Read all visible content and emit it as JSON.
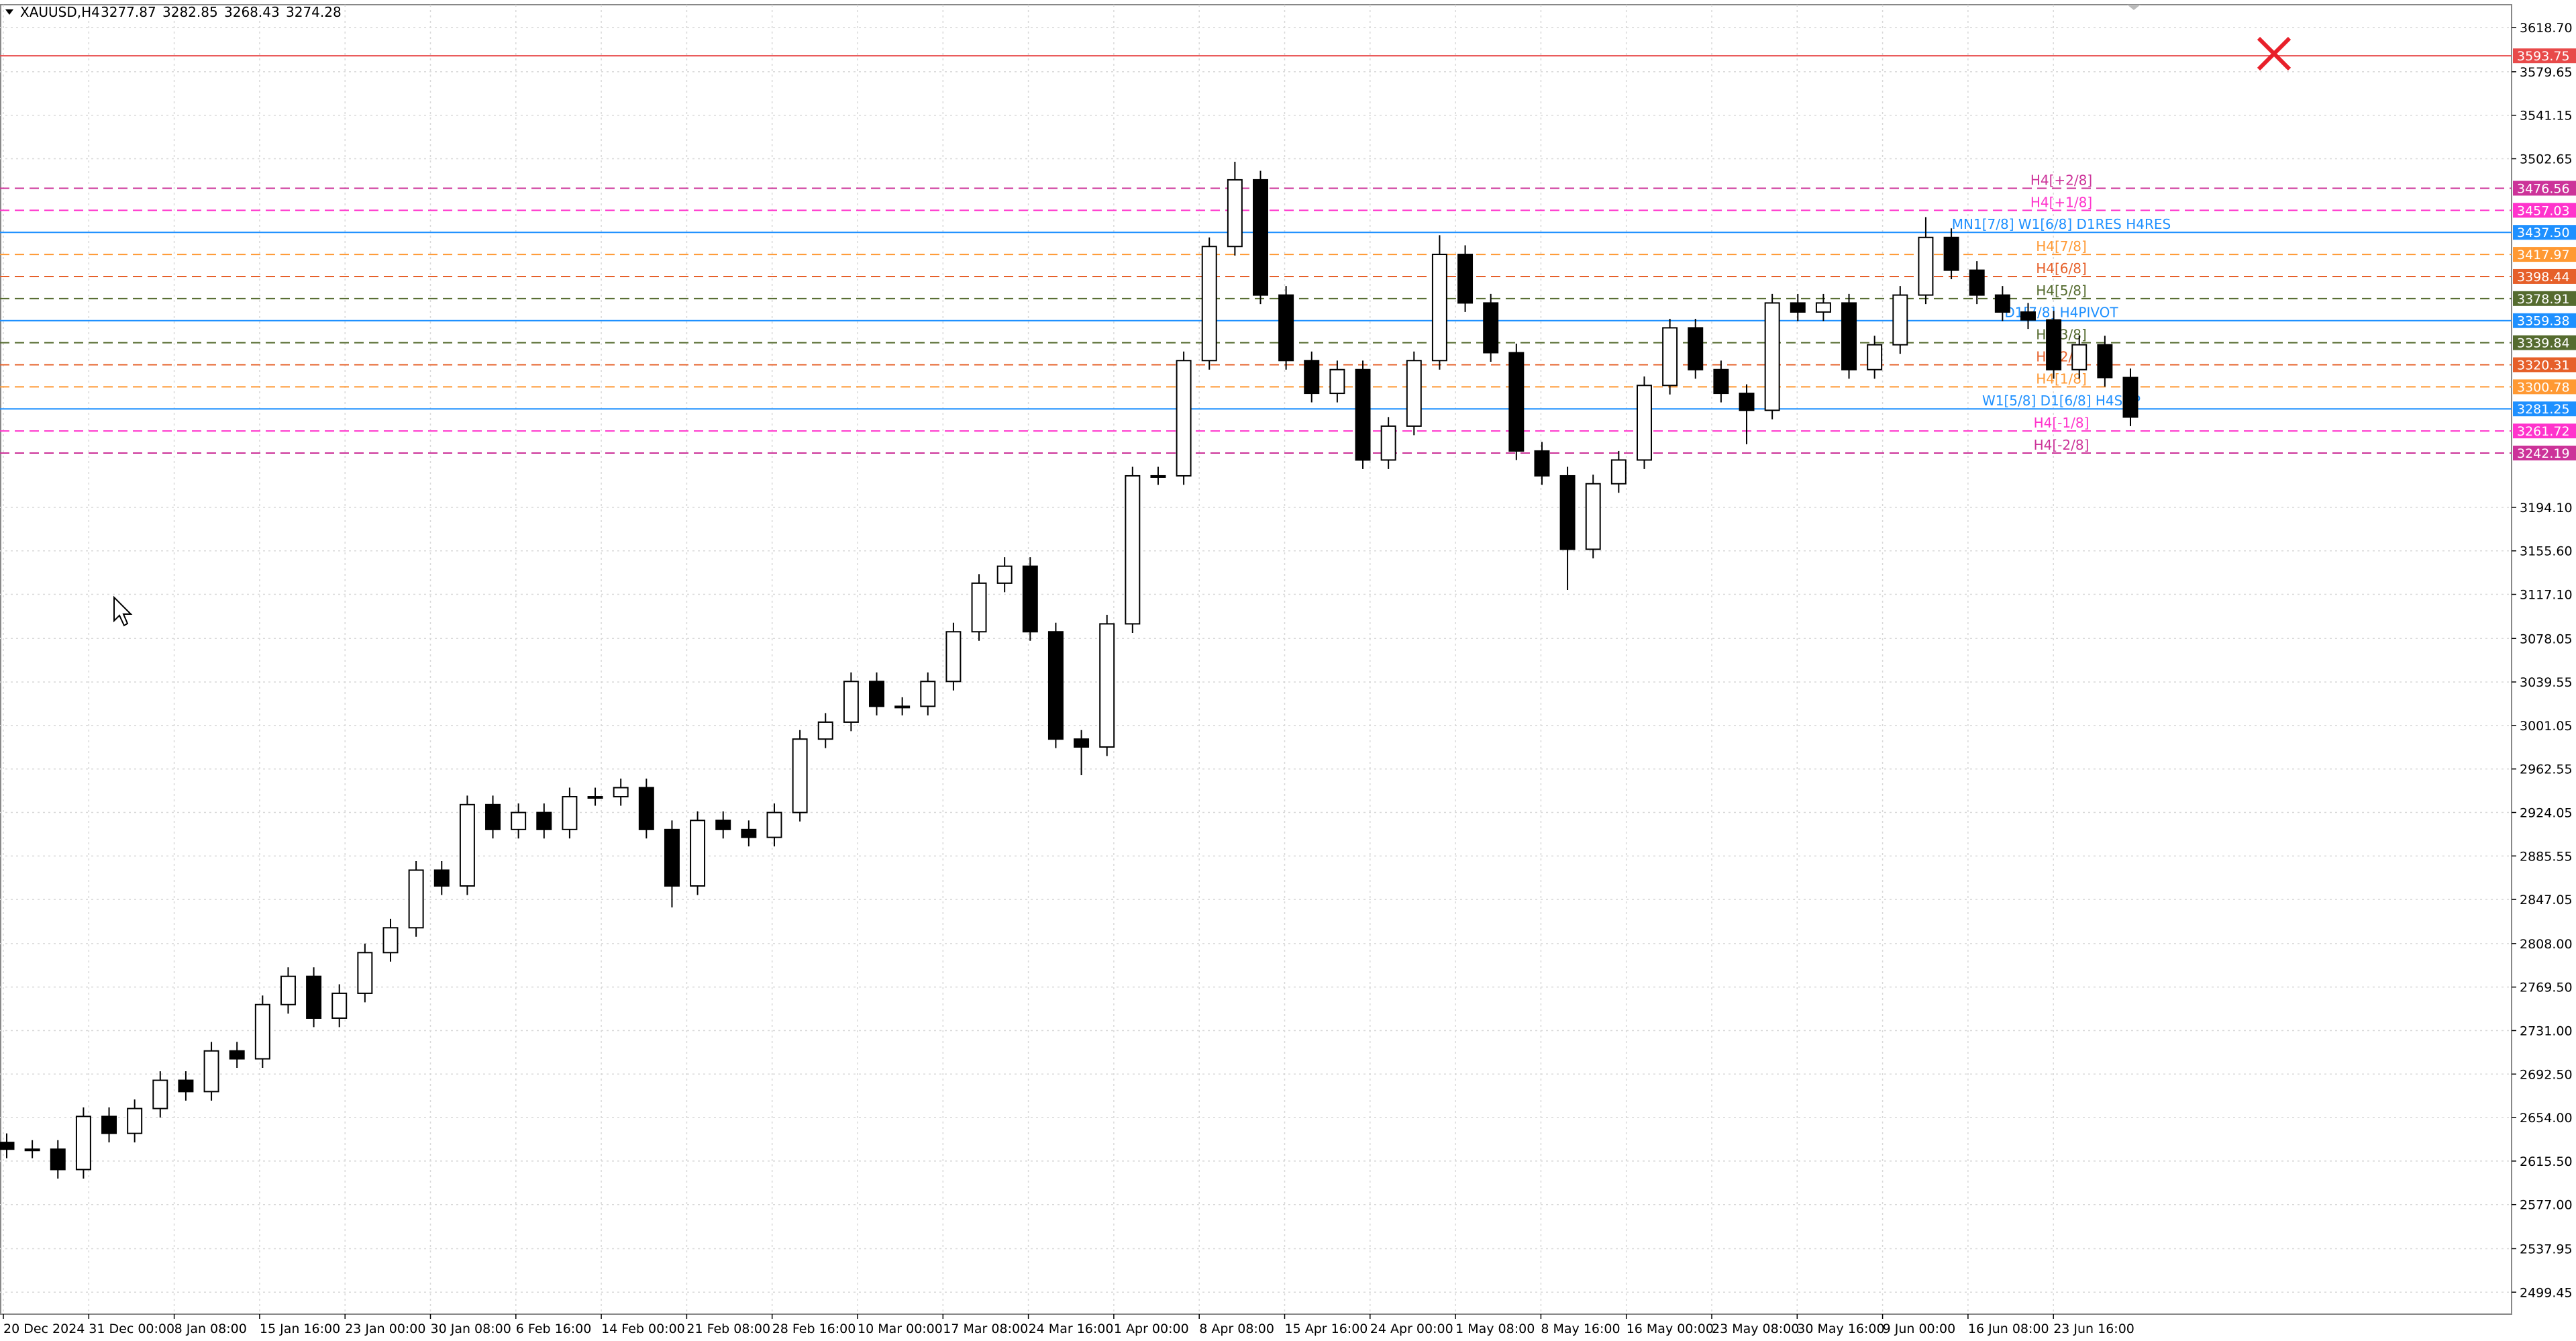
{
  "chart_data": {
    "type": "candlestick",
    "symbol": "XAUUSD,H4",
    "header_values": [
      3277.87,
      3282.85,
      3268.43,
      3274.28
    ],
    "ylim": [
      2480,
      3639
    ],
    "yticks": [
      {
        "value": 3618.7,
        "label": "3618.70"
      },
      {
        "value": 3579.65,
        "label": "3579.65"
      },
      {
        "value": 3541.15,
        "label": "3541.15"
      },
      {
        "value": 3502.65,
        "label": "3502.65"
      },
      {
        "value": 3194.1,
        "label": "3194.10"
      },
      {
        "value": 3155.6,
        "label": "3155.60"
      },
      {
        "value": 3117.1,
        "label": "3117.10"
      },
      {
        "value": 3078.05,
        "label": "3078.05"
      },
      {
        "value": 3039.55,
        "label": "3039.55"
      },
      {
        "value": 3001.05,
        "label": "3001.05"
      },
      {
        "value": 2962.55,
        "label": "2962.55"
      },
      {
        "value": 2924.05,
        "label": "2924.05"
      },
      {
        "value": 2885.55,
        "label": "2885.55"
      },
      {
        "value": 2847.05,
        "label": "2847.05"
      },
      {
        "value": 2808.0,
        "label": "2808.00"
      },
      {
        "value": 2769.5,
        "label": "2769.50"
      },
      {
        "value": 2731.0,
        "label": "2731.00"
      },
      {
        "value": 2692.5,
        "label": "2692.50"
      },
      {
        "value": 2654.0,
        "label": "2654.00"
      },
      {
        "value": 2615.5,
        "label": "2615.50"
      },
      {
        "value": 2577.0,
        "label": "2577.00"
      },
      {
        "value": 2537.95,
        "label": "2537.95"
      },
      {
        "value": 2499.45,
        "label": "2499.45"
      }
    ],
    "x_labels": [
      "20 Dec 2024",
      "31 Dec 00:00",
      "8 Jan 08:00",
      "15 Jan 16:00",
      "23 Jan 00:00",
      "30 Jan 08:00",
      "6 Feb 16:00",
      "14 Feb 00:00",
      "21 Feb 08:00",
      "28 Feb 16:00",
      "10 Mar 00:00",
      "17 Mar 08:00",
      "24 Mar 16:00",
      "1 Apr 00:00",
      "8 Apr 08:00",
      "15 Apr 16:00",
      "24 Apr 00:00",
      "1 May 08:00",
      "8 May 16:00",
      "16 May 00:00",
      "23 May 08:00",
      "30 May 16:00",
      "9 Jun 00:00",
      "16 Jun 08:00",
      "23 Jun 16:00"
    ],
    "grid": true,
    "up_color": "#ffffff",
    "down_color": "#000000",
    "wick_color": "#000000",
    "candles": {
      "open": [
        2632,
        2626,
        2626,
        2608,
        2655,
        2640,
        2662,
        2687,
        2677,
        2713,
        2706,
        2754,
        2779,
        2742,
        2764,
        2800,
        2822,
        2873,
        2859,
        2931,
        2909,
        2924,
        2909,
        2938,
        2938,
        2946,
        2909,
        2859,
        2917,
        2909,
        2902,
        2924,
        2989,
        3004,
        3040,
        3018,
        3018,
        3040,
        3084,
        3127,
        3142,
        3084,
        2989,
        2982,
        3091,
        3222,
        3222,
        3324,
        3425,
        3484,
        3382,
        3324,
        3295,
        3316,
        3236,
        3266,
        3324,
        3418,
        3375,
        3331,
        3244,
        3222,
        3157,
        3215,
        3236,
        3302,
        3353,
        3316,
        3295,
        3280,
        3375,
        3367,
        3375,
        3316,
        3338,
        3382,
        3433,
        3404,
        3382,
        3367,
        3360,
        3316,
        3338,
        3309
      ],
      "high": [
        2640,
        2634,
        2634,
        2663,
        2663,
        2670,
        2695,
        2695,
        2721,
        2721,
        2762,
        2787,
        2787,
        2772,
        2808,
        2830,
        2881,
        2881,
        2939,
        2939,
        2932,
        2932,
        2946,
        2946,
        2954,
        2954,
        2917,
        2925,
        2925,
        2917,
        2932,
        2997,
        3012,
        3048,
        3048,
        3026,
        3048,
        3092,
        3135,
        3150,
        3150,
        3092,
        2997,
        3099,
        3230,
        3230,
        3332,
        3433,
        3500,
        3492,
        3390,
        3332,
        3324,
        3324,
        3274,
        3332,
        3435,
        3426,
        3383,
        3339,
        3252,
        3230,
        3223,
        3244,
        3310,
        3361,
        3361,
        3324,
        3303,
        3383,
        3383,
        3383,
        3383,
        3346,
        3390,
        3451,
        3441,
        3412,
        3390,
        3375,
        3368,
        3346,
        3346,
        3317
      ],
      "low": [
        2618,
        2618,
        2600,
        2600,
        2632,
        2632,
        2654,
        2669,
        2669,
        2698,
        2698,
        2746,
        2734,
        2734,
        2756,
        2792,
        2814,
        2851,
        2851,
        2901,
        2901,
        2901,
        2901,
        2930,
        2930,
        2901,
        2840,
        2851,
        2901,
        2894,
        2894,
        2916,
        2981,
        2996,
        3010,
        3010,
        3010,
        3032,
        3076,
        3119,
        3076,
        2981,
        2957,
        2974,
        3083,
        3214,
        3214,
        3316,
        3417,
        3374,
        3316,
        3287,
        3287,
        3228,
        3228,
        3258,
        3316,
        3367,
        3323,
        3236,
        3214,
        3121,
        3149,
        3207,
        3228,
        3294,
        3308,
        3287,
        3250,
        3272,
        3359,
        3359,
        3308,
        3308,
        3330,
        3374,
        3396,
        3374,
        3359,
        3352,
        3308,
        3308,
        3301,
        3266
      ],
      "close": [
        2626,
        2626,
        2608,
        2655,
        2640,
        2662,
        2687,
        2677,
        2713,
        2706,
        2754,
        2779,
        2742,
        2764,
        2800,
        2822,
        2873,
        2859,
        2931,
        2909,
        2924,
        2909,
        2938,
        2938,
        2946,
        2909,
        2859,
        2917,
        2909,
        2902,
        2924,
        2989,
        3004,
        3040,
        3018,
        3018,
        3040,
        3084,
        3127,
        3142,
        3084,
        2989,
        2982,
        3091,
        3222,
        3222,
        3324,
        3425,
        3484,
        3382,
        3324,
        3295,
        3316,
        3236,
        3266,
        3324,
        3418,
        3375,
        3331,
        3244,
        3222,
        3157,
        3215,
        3236,
        3302,
        3353,
        3316,
        3295,
        3280,
        3375,
        3367,
        3375,
        3316,
        3338,
        3382,
        3433,
        3404,
        3382,
        3367,
        3360,
        3316,
        3338,
        3309,
        3274
      ]
    },
    "levels": [
      {
        "value": 3593.75,
        "value_label": "3593.75",
        "color": "#e84a4a",
        "style": "solid"
      },
      {
        "value": 3476.56,
        "value_label": "3476.56",
        "name": "H4[+2/8]",
        "color": "#cc3399",
        "style": "dashed"
      },
      {
        "value": 3457.03,
        "value_label": "3457.03",
        "name": "H4[+1/8]",
        "color": "#ff33cc",
        "style": "dashed"
      },
      {
        "value": 3437.5,
        "value_label": "3437.50",
        "name": "MN1[7/8] W1[6/8] D1RES H4RES",
        "color": "#1e90ff",
        "style": "solid"
      },
      {
        "value": 3417.97,
        "value_label": "3417.97",
        "name": "H4[7/8]",
        "color": "#ff9933",
        "style": "dashed"
      },
      {
        "value": 3398.44,
        "value_label": "3398.44",
        "name": "H4[6/8]",
        "color": "#e6602a",
        "style": "dashed"
      },
      {
        "value": 3378.91,
        "value_label": "3378.91",
        "name": "H4[5/8]",
        "color": "#556b2f",
        "style": "dashed"
      },
      {
        "value": 3359.38,
        "value_label": "3359.38",
        "name": "D1[7/8] H4PIVOT",
        "color": "#1e90ff",
        "style": "solid"
      },
      {
        "value": 3339.84,
        "value_label": "3339.84",
        "name": "H4[3/8]",
        "color": "#556b2f",
        "style": "dashed"
      },
      {
        "value": 3320.31,
        "value_label": "3320.31",
        "name": "H4[2/8]",
        "color": "#e6602a",
        "style": "dashed"
      },
      {
        "value": 3300.78,
        "value_label": "3300.78",
        "name": "H4[1/8]",
        "color": "#ff9933",
        "style": "dashed"
      },
      {
        "value": 3281.25,
        "value_label": "3281.25",
        "name": "W1[5/8] D1[6/8] H4SUP",
        "color": "#1e90ff",
        "style": "solid"
      },
      {
        "value": 3261.72,
        "value_label": "3261.72",
        "name": "H4[-1/8]",
        "color": "#ff33cc",
        "style": "dashed"
      },
      {
        "value": 3242.19,
        "value_label": "3242.19",
        "name": "H4[-2/8]",
        "color": "#cc3399",
        "style": "dashed"
      }
    ]
  }
}
